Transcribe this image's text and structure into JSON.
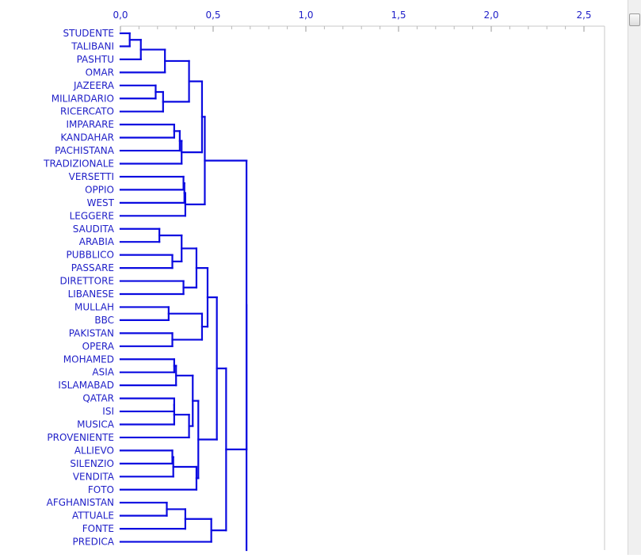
{
  "chart_data": {
    "type": "dendrogram",
    "orientation": "left-to-right",
    "x_ticks": [
      "0,0",
      "0,5",
      "1,0",
      "1,5",
      "2,0",
      "2,5"
    ],
    "xlim": [
      0,
      2.6
    ],
    "leaf_color": "#2020c8",
    "line_color": "#0a0ae0",
    "leaves": [
      "STUDENTE",
      "TALIBANI",
      "PASHTU",
      "OMAR",
      "JAZEERA",
      "MILIARDARIO",
      "RICERCATO",
      "IMPARARE",
      "KANDAHAR",
      "PACHISTANA",
      "TRADIZIONALE",
      "VERSETTI",
      "OPPIO",
      "WEST",
      "LEGGERE",
      "SAUDITA",
      "ARABIA",
      "PUBBLICO",
      "PASSARE",
      "DIRETTORE",
      "LIBANESE",
      "MULLAH",
      "BBC",
      "PAKISTAN",
      "OPERA",
      "MOHAMED",
      "ASIA",
      "ISLAMABAD",
      "QATAR",
      "ISI",
      "MUSICA",
      "PROVENIENTE",
      "ALLIEVO",
      "SILENZIO",
      "VENDITA",
      "FOTO",
      "AFGHANISTAN",
      "ATTUALE",
      "FONTE",
      "PREDICA"
    ],
    "merges": [
      {
        "left": "STUDENTE",
        "right": "TALIBANI",
        "height": 0.05,
        "id": "c1"
      },
      {
        "left": "c1",
        "right": "PASHTU",
        "height": 0.11,
        "id": "c2"
      },
      {
        "left": "c2",
        "right": "OMAR",
        "height": 0.24,
        "id": "c3"
      },
      {
        "left": "JAZEERA",
        "right": "MILIARDARIO",
        "height": 0.19,
        "id": "c4"
      },
      {
        "left": "c4",
        "right": "RICERCATO",
        "height": 0.23,
        "id": "c5"
      },
      {
        "left": "c3",
        "right": "c5",
        "height": 0.37,
        "id": "c6"
      },
      {
        "left": "IMPARARE",
        "right": "KANDAHAR",
        "height": 0.29,
        "id": "c7"
      },
      {
        "left": "c7",
        "right": "PACHISTANA",
        "height": 0.32,
        "id": "c8"
      },
      {
        "left": "c8",
        "right": "TRADIZIONALE",
        "height": 0.33,
        "id": "c9"
      },
      {
        "left": "c6",
        "right": "c9",
        "height": 0.44,
        "id": "c10"
      },
      {
        "left": "VERSETTI",
        "right": "OPPIO",
        "height": 0.34,
        "id": "c11"
      },
      {
        "left": "c11",
        "right": "WEST",
        "height": 0.345,
        "id": "c12"
      },
      {
        "left": "c12",
        "right": "LEGGERE",
        "height": 0.35,
        "id": "c13"
      },
      {
        "left": "c10",
        "right": "c13",
        "height": 0.455,
        "id": "c14"
      },
      {
        "left": "SAUDITA",
        "right": "ARABIA",
        "height": 0.21,
        "id": "c15"
      },
      {
        "left": "PUBBLICO",
        "right": "PASSARE",
        "height": 0.28,
        "id": "c16"
      },
      {
        "left": "c15",
        "right": "c16",
        "height": 0.33,
        "id": "c17"
      },
      {
        "left": "DIRETTORE",
        "right": "LIBANESE",
        "height": 0.34,
        "id": "c18"
      },
      {
        "left": "c17",
        "right": "c18",
        "height": 0.41,
        "id": "c19"
      },
      {
        "left": "MULLAH",
        "right": "BBC",
        "height": 0.26,
        "id": "c20"
      },
      {
        "left": "PAKISTAN",
        "right": "OPERA",
        "height": 0.28,
        "id": "c21"
      },
      {
        "left": "c20",
        "right": "c21",
        "height": 0.44,
        "id": "c22"
      },
      {
        "left": "c19",
        "right": "c22",
        "height": 0.47,
        "id": "c23"
      },
      {
        "left": "MOHAMED",
        "right": "ASIA",
        "height": 0.29,
        "id": "c24"
      },
      {
        "left": "c24",
        "right": "ISLAMABAD",
        "height": 0.3,
        "id": "c25"
      },
      {
        "left": "QATAR",
        "right": "ISI",
        "height": 0.29,
        "id": "c26"
      },
      {
        "left": "c26",
        "right": "MUSICA",
        "height": 0.29,
        "id": "c27"
      },
      {
        "left": "c27",
        "right": "PROVENIENTE",
        "height": 0.37,
        "id": "c28"
      },
      {
        "left": "c25",
        "right": "c28",
        "height": 0.39,
        "id": "c29"
      },
      {
        "left": "ALLIEVO",
        "right": "SILENZIO",
        "height": 0.28,
        "id": "c30"
      },
      {
        "left": "c30",
        "right": "VENDITA",
        "height": 0.285,
        "id": "c31"
      },
      {
        "left": "c31",
        "right": "FOTO",
        "height": 0.41,
        "id": "c32"
      },
      {
        "left": "c29",
        "right": "c32",
        "height": 0.42,
        "id": "c33"
      },
      {
        "left": "c23",
        "right": "c33",
        "height": 0.52,
        "id": "c34"
      },
      {
        "left": "AFGHANISTAN",
        "right": "ATTUALE",
        "height": 0.25,
        "id": "c35"
      },
      {
        "left": "c35",
        "right": "FONTE",
        "height": 0.35,
        "id": "c36"
      },
      {
        "left": "c36",
        "right": "PREDICA",
        "height": 0.49,
        "id": "c37"
      },
      {
        "left": "c34",
        "right": "c37",
        "height": 0.57,
        "id": "c38"
      },
      {
        "left": "c14",
        "right": "c38",
        "height": 0.68,
        "id": "c39"
      }
    ]
  }
}
